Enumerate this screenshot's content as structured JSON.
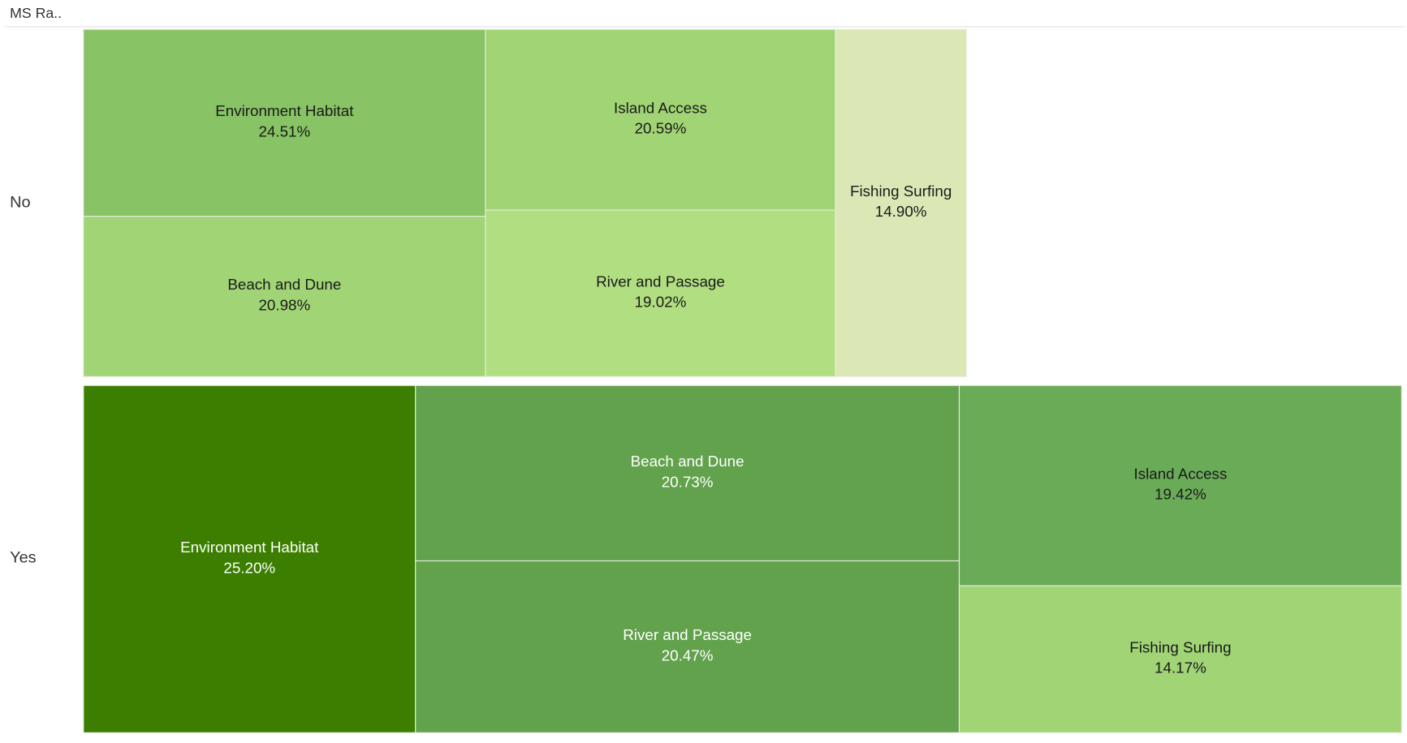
{
  "chart_data": {
    "type": "treemap",
    "title": "MS Ra..",
    "groups": [
      {
        "name": "No",
        "categories": [
          "Environment Habitat",
          "Beach and Dune",
          "Island Access",
          "River and Passage",
          "Fishing Surfing"
        ],
        "values": [
          24.51,
          20.98,
          20.59,
          19.02,
          14.9
        ],
        "value_labels": [
          "24.51%",
          "20.98%",
          "20.59%",
          "19.02%",
          "14.90%"
        ],
        "colors": [
          "#88c365",
          "#a0d475",
          "#a1d474",
          "#b0de80",
          "#dbe8b5"
        ]
      },
      {
        "name": "Yes",
        "categories": [
          "Environment Habitat",
          "Beach and Dune",
          "River and Passage",
          "Island Access",
          "Fishing Surfing"
        ],
        "values": [
          25.2,
          20.73,
          20.47,
          19.42,
          14.17
        ],
        "value_labels": [
          "25.20%",
          "20.73%",
          "20.47%",
          "19.42%",
          "14.17%"
        ],
        "colors": [
          "#3c7f00",
          "#62a24c",
          "#62a24c",
          "#6aab58",
          "#a0d475"
        ]
      }
    ]
  }
}
